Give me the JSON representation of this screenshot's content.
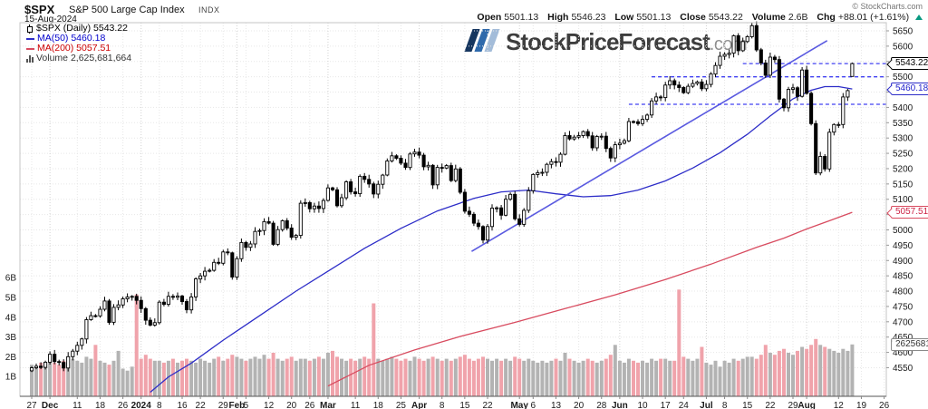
{
  "header": {
    "symbol": "$SPX",
    "name": "S&P 500 Large Cap Index",
    "exchange": "INDX",
    "date": "15-Aug-2024",
    "copyright": "© StockCharts.com",
    "quote": {
      "open_label": "Open",
      "open": "5501.13",
      "high_label": "High",
      "high": "5546.23",
      "low_label": "Low",
      "low": "5501.13",
      "close_label": "Close",
      "close": "5543.22",
      "volume_label": "Volume",
      "volume": "2.6B",
      "chg_label": "Chg",
      "chg": "+88.01 (+1.61%)",
      "chg_direction": "up"
    }
  },
  "legend": {
    "series": "$SPX (Daily) 5543.22",
    "ma50": "MA(50) 5460.18",
    "ma200": "MA(200) 5057.51",
    "volume": "Volume 2,625,681,664"
  },
  "watermark": {
    "text": "StockPriceForecast",
    "suffix": ".com"
  },
  "price_labels": {
    "close": "5543.22",
    "ma50": "5460.18",
    "ma200": "5057.51",
    "volume": "2625681664"
  },
  "colors": {
    "candle_up_fill": "#ffffff",
    "candle_down_fill": "#000000",
    "candle_stroke": "#000000",
    "volume_up": "#b3b3b3",
    "volume_down": "#f0a3ab",
    "ma50": "#2d2dc8",
    "ma200": "#d84b5f",
    "trendline": "#5a5ae0",
    "support_dashed": "#4040f2",
    "grid": "#e7e7e7",
    "grid_month": "#d2d2d2",
    "axis_border": "#c4c4c4",
    "chg_up": "#089981"
  },
  "chart_data": {
    "type": "candlestick+volume",
    "symbol": "$SPX",
    "timeframe": "Daily",
    "title": "$SPX S&P 500 Large Cap Index INDX — 15-Aug-2024",
    "y_axis": {
      "min": 4550,
      "max": 5650,
      "tick_step": 50
    },
    "volume_axis": {
      "ticks": [
        "1B",
        "2B",
        "3B",
        "4B",
        "5B",
        "6B"
      ],
      "billions": [
        1,
        2,
        3,
        4,
        5,
        6
      ]
    },
    "x_ticks": [
      [
        0,
        "27",
        0
      ],
      [
        4,
        "Dec",
        1
      ],
      [
        10,
        "11",
        0
      ],
      [
        15,
        "18",
        0
      ],
      [
        20,
        "26",
        0
      ],
      [
        24,
        "2024",
        1
      ],
      [
        28,
        "8",
        0
      ],
      [
        33,
        "16",
        0
      ],
      [
        37,
        "22",
        0
      ],
      [
        42,
        "29",
        0
      ],
      [
        45,
        "Feb",
        1
      ],
      [
        47,
        "5",
        0
      ],
      [
        52,
        "12",
        0
      ],
      [
        57,
        "20",
        0
      ],
      [
        61,
        "26",
        0
      ],
      [
        65,
        "Mar",
        1
      ],
      [
        71,
        "11",
        0
      ],
      [
        76,
        "18",
        0
      ],
      [
        81,
        "25",
        0
      ],
      [
        85,
        "Apr",
        1
      ],
      [
        90,
        "8",
        0
      ],
      [
        95,
        "15",
        0
      ],
      [
        100,
        "22",
        0
      ],
      [
        107,
        "May",
        1
      ],
      [
        110,
        "6",
        0
      ],
      [
        115,
        "13",
        0
      ],
      [
        120,
        "20",
        0
      ],
      [
        125,
        "28",
        0
      ],
      [
        129,
        "Jun",
        1
      ],
      [
        134,
        "10",
        0
      ],
      [
        139,
        "17",
        0
      ],
      [
        143,
        "24",
        0
      ],
      [
        148,
        "Jul",
        1
      ],
      [
        152,
        "8",
        0
      ],
      [
        157,
        "15",
        0
      ],
      [
        162,
        "22",
        0
      ],
      [
        167,
        "29",
        0
      ],
      [
        170,
        "Aug",
        1
      ],
      [
        177,
        "12",
        0
      ],
      [
        182,
        "19",
        0
      ],
      [
        187,
        "26",
        0
      ]
    ],
    "closes": [
      4550,
      4555,
      4551,
      4568,
      4594,
      4570,
      4567,
      4549,
      4586,
      4604,
      4623,
      4644,
      4707,
      4720,
      4719,
      4741,
      4768,
      4698,
      4747,
      4755,
      4775,
      4781,
      4783,
      4770,
      4743,
      4705,
      4689,
      4697,
      4764,
      4757,
      4783,
      4780,
      4784,
      4766,
      4739,
      4781,
      4840,
      4850,
      4865,
      4868,
      4894,
      4891,
      4928,
      4925,
      4846,
      4906,
      4959,
      4943,
      4954,
      4995,
      4998,
      5027,
      5022,
      4953,
      5001,
      5030,
      5006,
      4976,
      4982,
      5087,
      5089,
      5069,
      5078,
      5070,
      5096,
      5137,
      5131,
      5079,
      5105,
      5157,
      5124,
      5118,
      5175,
      5165,
      5150,
      5117,
      5149,
      5179,
      5225,
      5242,
      5234,
      5218,
      5204,
      5248,
      5254,
      5244,
      5206,
      5211,
      5147,
      5204,
      5202,
      5210,
      5161,
      5199,
      5123,
      5061,
      5051,
      5022,
      5011,
      4967,
      5011,
      5071,
      5072,
      5048,
      5100,
      5116,
      5036,
      5018,
      5064,
      5128,
      5181,
      5187,
      5188,
      5214,
      5223,
      5221,
      5247,
      5308,
      5297,
      5303,
      5308,
      5321,
      5307,
      5268,
      5305,
      5306,
      5266,
      5235,
      5278,
      5283,
      5291,
      5354,
      5353,
      5347,
      5361,
      5375,
      5421,
      5434,
      5432,
      5473,
      5487,
      5473,
      5465,
      5448,
      5469,
      5478,
      5483,
      5461,
      5475,
      5509,
      5537,
      5567,
      5573,
      5577,
      5634,
      5585,
      5615,
      5631,
      5667,
      5588,
      5545,
      5505,
      5564,
      5556,
      5427,
      5399,
      5459,
      5464,
      5436,
      5522,
      5446,
      5347,
      5186,
      5240,
      5199,
      5319,
      5344,
      5344,
      5434,
      5455,
      5543.22
    ],
    "volumes_billions": [
      1.6,
      1.5,
      1.7,
      1.6,
      1.8,
      1.7,
      1.6,
      1.8,
      1.7,
      1.9,
      1.8,
      1.7,
      2.0,
      1.9,
      2.6,
      1.8,
      1.7,
      1.6,
      1.8,
      2.3,
      1.4,
      1.3,
      1.5,
      5.15,
      1.9,
      2.1,
      1.9,
      1.8,
      1.8,
      1.7,
      1.8,
      1.9,
      1.7,
      1.8,
      1.9,
      1.8,
      1.7,
      1.9,
      1.8,
      1.7,
      1.9,
      2.0,
      1.8,
      1.9,
      2.1,
      2.0,
      1.9,
      1.8,
      1.9,
      2.0,
      1.9,
      2.1,
      1.9,
      2.2,
      1.9,
      1.8,
      1.9,
      2.0,
      1.8,
      1.9,
      1.9,
      1.8,
      1.9,
      2.0,
      1.9,
      2.2,
      2.3,
      2.0,
      1.9,
      1.8,
      1.9,
      1.8,
      1.9,
      2.0,
      1.9,
      4.7,
      1.9,
      1.8,
      1.9,
      2.0,
      1.9,
      1.8,
      1.9,
      1.8,
      2.0,
      1.9,
      1.8,
      1.9,
      2.0,
      1.9,
      1.8,
      1.9,
      1.8,
      1.9,
      2.0,
      2.1,
      1.9,
      1.8,
      1.9,
      2.0,
      1.9,
      1.8,
      1.9,
      1.8,
      1.9,
      1.8,
      2.0,
      1.9,
      1.8,
      1.9,
      1.8,
      1.7,
      1.8,
      1.7,
      1.8,
      1.9,
      1.8,
      2.2,
      1.9,
      1.8,
      1.7,
      1.8,
      1.9,
      1.8,
      1.7,
      1.8,
      1.9,
      2.1,
      2.6,
      1.8,
      1.7,
      1.9,
      1.8,
      1.7,
      1.8,
      1.7,
      1.9,
      1.8,
      1.9,
      1.9,
      1.8,
      1.8,
      5.4,
      2.0,
      1.9,
      1.8,
      1.9,
      2.5,
      1.7,
      1.6,
      1.8,
      1.5,
      1.8,
      1.7,
      1.9,
      1.8,
      1.9,
      2.0,
      2.0,
      1.9,
      2.1,
      2.6,
      2.2,
      2.1,
      2.3,
      2.4,
      2.2,
      2.1,
      2.3,
      2.5,
      2.4,
      2.6,
      2.9,
      2.6,
      2.5,
      2.4,
      2.3,
      2.2,
      2.4,
      2.3,
      2.625
    ],
    "last_ohlc": {
      "open": 5501.13,
      "high": 5546.23,
      "low": 5501.13,
      "close": 5543.22,
      "volume": 2625681664
    },
    "ma50_points": [
      [
        26,
        4470
      ],
      [
        30,
        4520
      ],
      [
        35,
        4565
      ],
      [
        42,
        4640
      ],
      [
        50,
        4720
      ],
      [
        58,
        4800
      ],
      [
        65,
        4865
      ],
      [
        73,
        4940
      ],
      [
        81,
        5005
      ],
      [
        89,
        5062
      ],
      [
        97,
        5103
      ],
      [
        103,
        5124
      ],
      [
        109,
        5130
      ],
      [
        115,
        5118
      ],
      [
        121,
        5108
      ],
      [
        127,
        5112
      ],
      [
        133,
        5130
      ],
      [
        139,
        5160
      ],
      [
        145,
        5202
      ],
      [
        151,
        5252
      ],
      [
        157,
        5312
      ],
      [
        162,
        5372
      ],
      [
        167,
        5428
      ],
      [
        171,
        5456
      ],
      [
        174,
        5468
      ],
      [
        177,
        5468
      ],
      [
        180,
        5460.18
      ]
    ],
    "ma200_points": [
      [
        65,
        4490
      ],
      [
        74,
        4558
      ],
      [
        84,
        4608
      ],
      [
        94,
        4652
      ],
      [
        106,
        4698
      ],
      [
        117,
        4743
      ],
      [
        128,
        4788
      ],
      [
        139,
        4838
      ],
      [
        149,
        4888
      ],
      [
        159,
        4943
      ],
      [
        165,
        4973
      ],
      [
        170,
        5003
      ],
      [
        175,
        5030
      ],
      [
        180,
        5057.51
      ]
    ],
    "trendline": {
      "from": [
        96.5,
        4930
      ],
      "to": [
        174.5,
        5618
      ]
    },
    "hlines": [
      {
        "price": 5543.22,
        "from_i": 156
      },
      {
        "price": 5500,
        "from_i": 136
      },
      {
        "price": 5410,
        "from_i": 131
      }
    ]
  }
}
